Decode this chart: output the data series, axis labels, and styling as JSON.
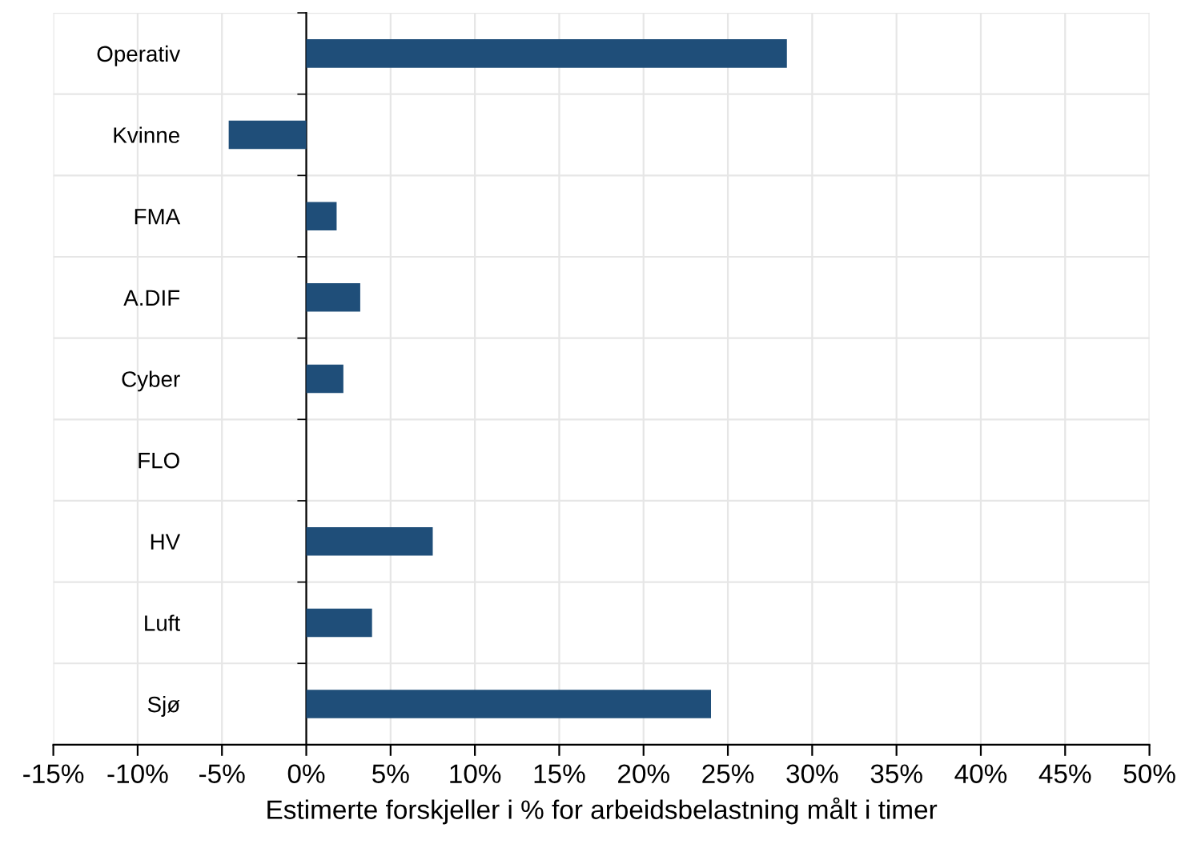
{
  "chart_data": {
    "type": "bar",
    "orientation": "horizontal",
    "xlabel": "Estimerte forskjeller i % for arbeidsbelastning målt i timer",
    "categories": [
      "Operativ",
      "Kvinne",
      "FMA",
      "A.DIF",
      "Cyber",
      "FLO",
      "HV",
      "Luft",
      "Sjø"
    ],
    "values": [
      28.5,
      -4.6,
      1.8,
      3.2,
      2.2,
      0,
      7.5,
      3.9,
      24.0
    ],
    "color": "#1f4e79",
    "xlim": [
      -15,
      50
    ],
    "xticks": [
      {
        "value": -15,
        "label": "-15%"
      },
      {
        "value": -10,
        "label": "-10%"
      },
      {
        "value": -5,
        "label": "-5%"
      },
      {
        "value": 0,
        "label": "0%"
      },
      {
        "value": 5,
        "label": "5%"
      },
      {
        "value": 10,
        "label": "10%"
      },
      {
        "value": 15,
        "label": "15%"
      },
      {
        "value": 20,
        "label": "20%"
      },
      {
        "value": 25,
        "label": "25%"
      },
      {
        "value": 30,
        "label": "30%"
      },
      {
        "value": 35,
        "label": "35%"
      },
      {
        "value": 40,
        "label": "40%"
      },
      {
        "value": 45,
        "label": "45%"
      },
      {
        "value": 50,
        "label": "50%"
      }
    ],
    "grid": true
  }
}
